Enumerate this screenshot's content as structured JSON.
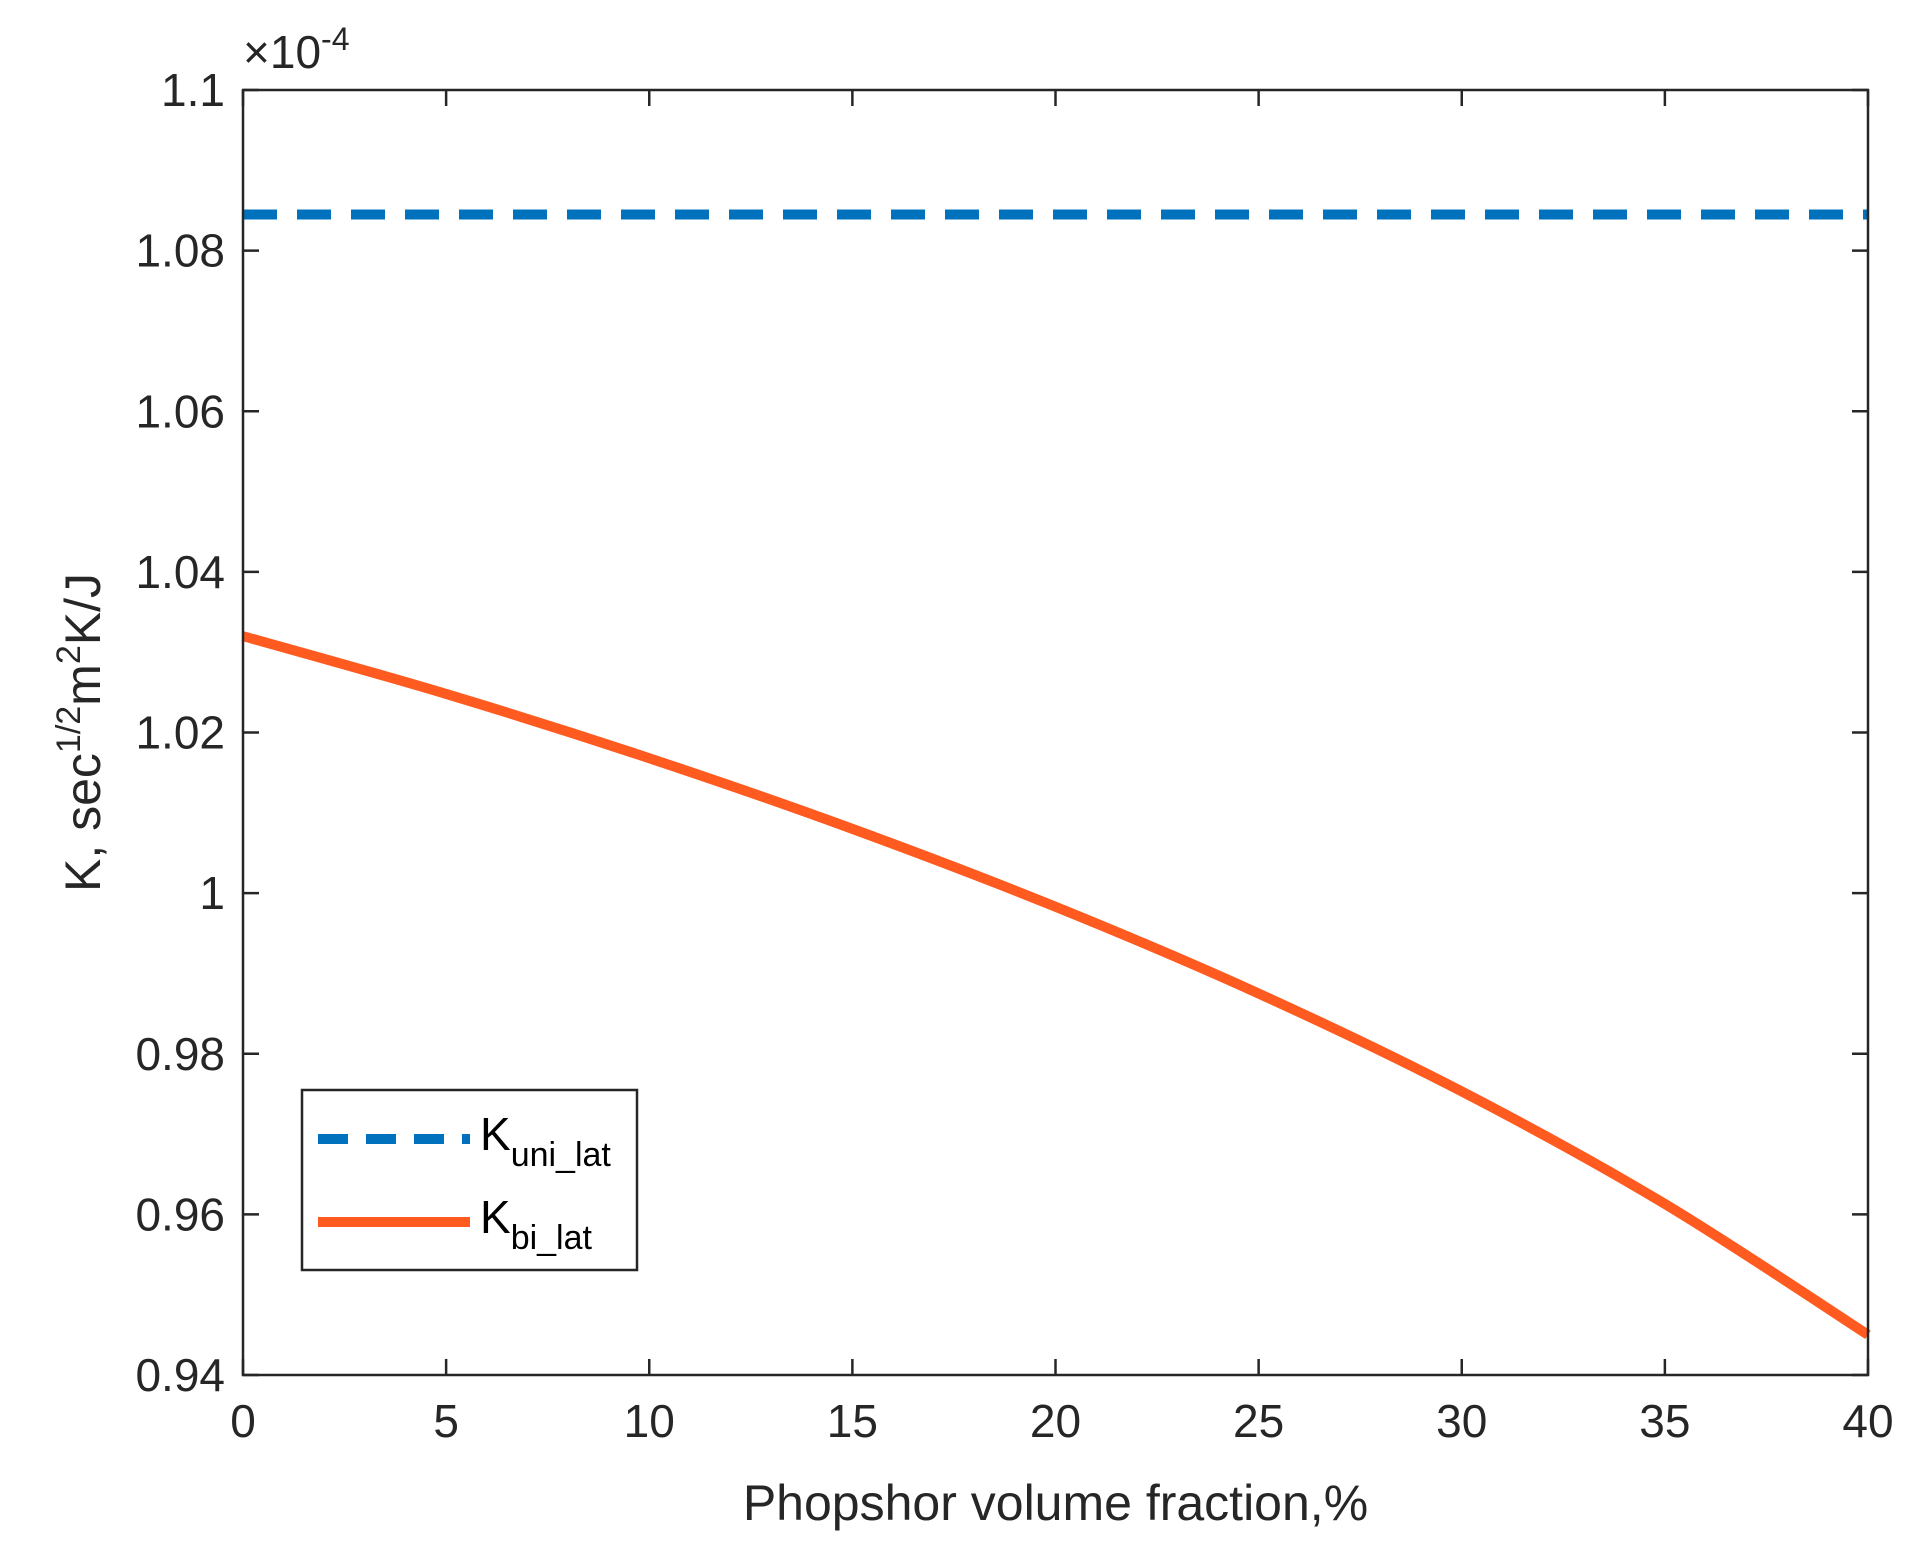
{
  "chart_data": {
    "type": "line",
    "title": "",
    "xlabel": "Phopshor volume fraction,%",
    "ylabel": {
      "base": "K, sec",
      "sup1": "1/2",
      "mid": "m",
      "sup2": "2",
      "end": "K/J"
    },
    "xlim": [
      0,
      40
    ],
    "ylim": [
      0.94,
      1.1
    ],
    "xticks": [
      0,
      5,
      10,
      15,
      20,
      25,
      30,
      35,
      40
    ],
    "xtick_labels": [
      "0",
      "5",
      "10",
      "15",
      "20",
      "25",
      "30",
      "35",
      "40"
    ],
    "yticks": [
      0.94,
      0.96,
      0.98,
      1.0,
      1.02,
      1.04,
      1.06,
      1.08,
      1.1
    ],
    "ytick_labels": [
      "0.94",
      "0.96",
      "0.98",
      "1",
      "1.02",
      "1.04",
      "1.06",
      "1.08",
      "1.1"
    ],
    "y_exponent": {
      "prefix": "×10",
      "power": "-4"
    },
    "grid": false,
    "legend_position": "bottom-left",
    "series": [
      {
        "name": "K_uni_lat",
        "label_main": "K",
        "label_sub": "uni_lat",
        "color": "#0072BD",
        "style": "dashed",
        "x": [
          0,
          40
        ],
        "y": [
          1.0845,
          1.0845
        ]
      },
      {
        "name": "K_bi_lat",
        "label_main": "K",
        "label_sub": "bi_lat",
        "color": "#FF5A1F",
        "style": "solid",
        "x": [
          0,
          5,
          10,
          15,
          20,
          25,
          30,
          35,
          40
        ],
        "y": [
          1.032,
          1.0248,
          1.0168,
          1.008,
          0.9983,
          0.9875,
          0.9753,
          0.9613,
          0.945
        ]
      }
    ]
  }
}
